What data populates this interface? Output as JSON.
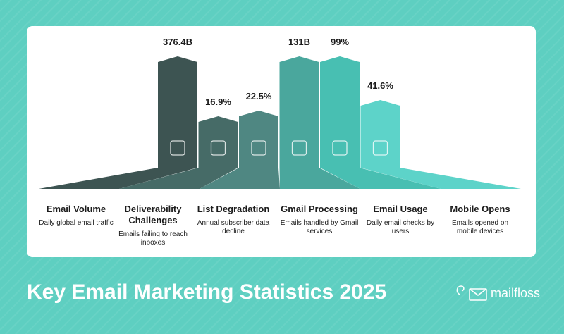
{
  "items": [
    {
      "value": "376.4B",
      "title": "Email Volume",
      "description": "Daily global email traffic"
    },
    {
      "value": "16.9%",
      "title": "Deliverability Challenges",
      "description": "Emails failing to reach inboxes"
    },
    {
      "value": "22.5%",
      "title": "List Degradation",
      "description": "Annual subscriber data decline"
    },
    {
      "value": "131B",
      "title": "Gmail Processing",
      "description": "Emails handled by Gmail services"
    },
    {
      "value": "99%",
      "title": "Email Usage",
      "description": "Daily email checks by users"
    },
    {
      "value": "41.6%",
      "title": "Mobile Opens",
      "description": "Emails opened on mobile devices"
    }
  ],
  "footer": {
    "title": "Key Email Marketing Statistics 2025",
    "brand": "mailfloss"
  }
}
